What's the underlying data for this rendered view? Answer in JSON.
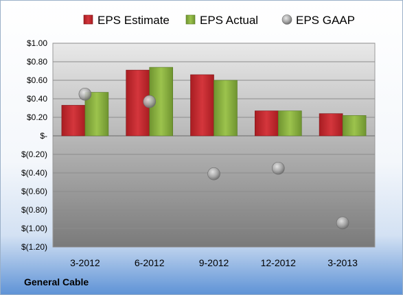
{
  "company": "General Cable",
  "colors": {
    "estimate": "#c0262d",
    "actual": "#86ad3c",
    "gaap": "#a8a8a8"
  },
  "chart_data": {
    "type": "bar",
    "categories": [
      "3-2012",
      "6-2012",
      "9-2012",
      "12-2012",
      "3-2013"
    ],
    "series": [
      {
        "name": "EPS Estimate",
        "kind": "bar",
        "values": [
          0.33,
          0.71,
          0.66,
          0.27,
          0.24
        ]
      },
      {
        "name": "EPS Actual",
        "kind": "bar",
        "values": [
          0.47,
          0.74,
          0.6,
          0.27,
          0.22
        ]
      },
      {
        "name": "EPS GAAP",
        "kind": "scatter",
        "values": [
          0.45,
          0.37,
          -0.41,
          -0.35,
          -0.94
        ]
      }
    ],
    "ylim": [
      -1.2,
      1.0
    ],
    "yticks": [
      1.0,
      0.8,
      0.6,
      0.4,
      0.2,
      0,
      -0.2,
      -0.4,
      -0.6,
      -0.8,
      -1.0,
      -1.2
    ],
    "ytick_labels": [
      "$1.00",
      "$0.80",
      "$0.60",
      "$0.40",
      "$0.20",
      "$-",
      "$(0.20)",
      "$(0.40)",
      "$(0.60)",
      "$(0.80)",
      "$(1.00)",
      "$(1.20)"
    ],
    "legend_position": "top",
    "grid": true
  }
}
